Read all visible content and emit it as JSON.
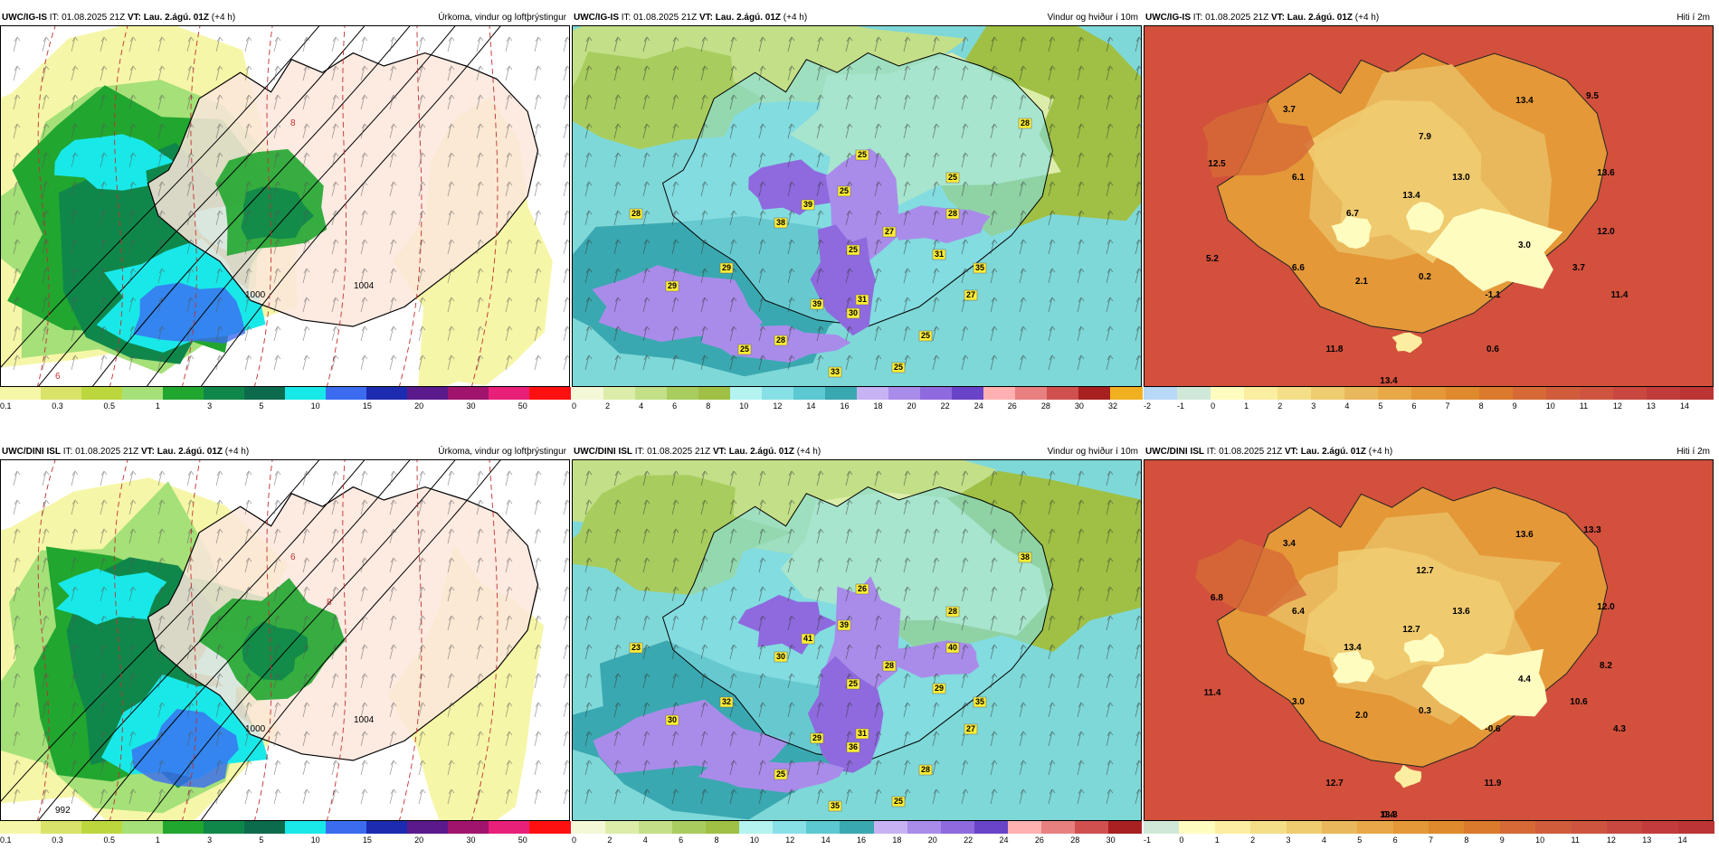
{
  "panels": [
    {
      "id": "p1",
      "source": "UWC/IG-IS",
      "it_label": "IT:",
      "it": "01.08.2025 21Z",
      "vt_label": "VT:",
      "vt": "Lau. 2.ágú. 01Z",
      "lead": "(+4 h)",
      "title": "Úrkoma, vindur og loftþrýstingur",
      "ticks": [
        "0.1",
        "0.3",
        "0.5",
        "1",
        "3",
        "5",
        "10",
        "15",
        "20",
        "30",
        "50"
      ],
      "colors": [
        "#f6f6a8",
        "#d9e36a",
        "#bcd73e",
        "#a5e078",
        "#21a630",
        "#10874a",
        "#0d6b4d",
        "#19e8e8",
        "#3b6cf0",
        "#1d2bb0",
        "#5a1a8c",
        "#a0146e",
        "#e8207a",
        "#ff1010"
      ],
      "labels": [
        {
          "t": "1000"
        },
        {
          "t": "1004"
        },
        {
          "t": "6"
        },
        {
          "t": "8"
        }
      ]
    },
    {
      "id": "p2",
      "source": "UWC/IG-IS",
      "it_label": "IT:",
      "it": "01.08.2025 21Z",
      "vt_label": "VT:",
      "vt": "Lau. 2.ágú. 01Z",
      "lead": "(+4 h)",
      "title": "Vindur og hviður í 10m",
      "ticks": [
        "0",
        "2",
        "4",
        "6",
        "8",
        "10",
        "12",
        "14",
        "16",
        "18",
        "20",
        "22",
        "24",
        "26",
        "28",
        "30",
        "32"
      ],
      "colors": [
        "#f4f8d6",
        "#dcedaa",
        "#c3df88",
        "#a8cd5e",
        "#9fc044",
        "#b3f3f0",
        "#86e0e6",
        "#5cc8d2",
        "#3aa8b0",
        "#c7b2f3",
        "#a98cea",
        "#8e6ade",
        "#6a44c8",
        "#ffb0b0",
        "#e88080",
        "#d05050",
        "#a82020",
        "#f0b020"
      ],
      "values": [
        "28",
        "25",
        "25",
        "28",
        "28",
        "39",
        "38",
        "25",
        "35",
        "31",
        "27",
        "29",
        "25",
        "31",
        "39",
        "30",
        "25",
        "27",
        "29",
        "25",
        "33",
        "28",
        "25"
      ]
    },
    {
      "id": "p3",
      "source": "UWC/IG-IS",
      "it_label": "IT:",
      "it": "01.08.2025 21Z",
      "vt_label": "VT:",
      "vt": "Lau. 2.ágú. 01Z",
      "lead": "(+4 h)",
      "title": "Hiti í 2m",
      "ticks": [
        "-2",
        "-1",
        "0",
        "1",
        "2",
        "3",
        "4",
        "5",
        "6",
        "7",
        "8",
        "9",
        "10",
        "11",
        "12",
        "13",
        "14"
      ],
      "colors": [
        "#b8d8f8",
        "#d0e8d8",
        "#fffcc0",
        "#fbeea0",
        "#f4df88",
        "#efcc70",
        "#eab85c",
        "#e8a848",
        "#e49838",
        "#df8a2c",
        "#db7a2c",
        "#d66a36",
        "#d05c3c",
        "#ce5440",
        "#c84840",
        "#c23c3c",
        "#bc3434"
      ],
      "values": [
        "3.7",
        "13.4",
        "9.5",
        "7.9",
        "12.5",
        "6.1",
        "13.4",
        "13.0",
        "13.6",
        "6.7",
        "12.0",
        "3.0",
        "5.2",
        "6.6",
        "3.7",
        "2.1",
        "0.2",
        "-1.1",
        "11.4",
        "11.8",
        "0.6",
        "13.4"
      ]
    },
    {
      "id": "p4",
      "source": "UWC/DINI ISL",
      "it_label": "IT:",
      "it": "01.08.2025 21Z",
      "vt_label": "VT:",
      "vt": "Lau. 2.ágú. 01Z",
      "lead": "(+4 h)",
      "title": "Úrkoma, vindur og loftþrýstingur",
      "ticks": [
        "0.1",
        "0.3",
        "0.5",
        "1",
        "3",
        "5",
        "10",
        "15",
        "20",
        "30",
        "50"
      ],
      "colors": [
        "#f6f6a8",
        "#d9e36a",
        "#bcd73e",
        "#a5e078",
        "#21a630",
        "#10874a",
        "#0d6b4d",
        "#19e8e8",
        "#3b6cf0",
        "#1d2bb0",
        "#5a1a8c",
        "#a0146e",
        "#e8207a",
        "#ff1010"
      ],
      "labels": [
        {
          "t": "1000"
        },
        {
          "t": "1004"
        },
        {
          "t": "992"
        },
        {
          "t": "6"
        },
        {
          "t": "8"
        }
      ]
    },
    {
      "id": "p5",
      "source": "UWC/DINI ISL",
      "it_label": "IT:",
      "it": "01.08.2025 21Z",
      "vt_label": "VT:",
      "vt": "Lau. 2.ágú. 01Z",
      "lead": "(+4 h)",
      "title": "Vindur og hviður í 10m",
      "ticks": [
        "0",
        "2",
        "4",
        "6",
        "8",
        "10",
        "12",
        "14",
        "16",
        "18",
        "20",
        "22",
        "24",
        "26",
        "28",
        "30"
      ],
      "colors": [
        "#f4f8d6",
        "#dcedaa",
        "#c3df88",
        "#a8cd5e",
        "#9fc044",
        "#b3f3f0",
        "#86e0e6",
        "#5cc8d2",
        "#3aa8b0",
        "#c7b2f3",
        "#a98cea",
        "#8e6ade",
        "#6a44c8",
        "#ffb0b0",
        "#e88080",
        "#d05050",
        "#a82020"
      ],
      "values": [
        "23",
        "26",
        "28",
        "40",
        "38",
        "41",
        "30",
        "39",
        "35",
        "29",
        "28",
        "32",
        "25",
        "31",
        "29",
        "36",
        "28",
        "27",
        "30",
        "25",
        "35",
        "25"
      ]
    },
    {
      "id": "p6",
      "source": "UWC/DINI ISL",
      "it_label": "IT:",
      "it": "01.08.2025 21Z",
      "vt_label": "VT:",
      "vt": "Lau. 2.ágú. 01Z",
      "lead": "(+4 h)",
      "title": "Hiti í 2m",
      "ticks": [
        "-1",
        "0",
        "1",
        "2",
        "3",
        "4",
        "5",
        "6",
        "7",
        "8",
        "9",
        "10",
        "11",
        "12",
        "13",
        "14"
      ],
      "colors": [
        "#d0e8d8",
        "#fffcc0",
        "#fbeea0",
        "#f4df88",
        "#efcc70",
        "#eab85c",
        "#e8a848",
        "#e49838",
        "#df8a2c",
        "#db7a2c",
        "#d66a36",
        "#d05c3c",
        "#ce5440",
        "#c84840",
        "#c23c3c",
        "#bc3434"
      ],
      "values": [
        "3.4",
        "13.6",
        "13.3",
        "12.7",
        "6.8",
        "6.4",
        "12.7",
        "13.6",
        "12.0",
        "13.4",
        "8.2",
        "4.4",
        "11.4",
        "3.0",
        "10.6",
        "2.0",
        "0.3",
        "-0.6",
        "4.3",
        "12.7",
        "11.9",
        "0.4",
        "13.3"
      ]
    }
  ]
}
